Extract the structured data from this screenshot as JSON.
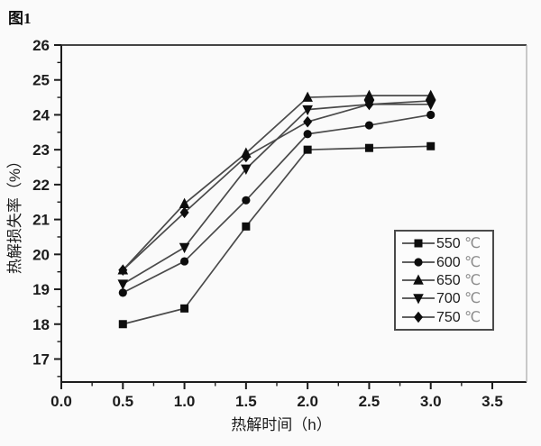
{
  "figure_label": "图1",
  "chart_data": {
    "type": "line",
    "title": "",
    "xlabel": "热解时间（h）",
    "ylabel": "热解损失率（%）",
    "xlim": [
      0.0,
      3.5
    ],
    "ylim": [
      16.3,
      26
    ],
    "x_ticks": [
      "0.0",
      "0.5",
      "1.0",
      "1.5",
      "2.0",
      "2.5",
      "3.0",
      "3.5"
    ],
    "y_ticks": [
      "17",
      "18",
      "19",
      "20",
      "21",
      "22",
      "23",
      "24",
      "25",
      "26"
    ],
    "x_minor_step": 0.25,
    "y_minor_step": 0.5,
    "grid": false,
    "legend_position": "right-middle",
    "line_color": "#4a4a4a",
    "marker_color": "#0d0d0d",
    "x": [
      0.5,
      1.0,
      1.5,
      2.0,
      2.5,
      3.0
    ],
    "series": [
      {
        "name": "550 ℃",
        "temp": "550",
        "unit": "℃",
        "marker": "square",
        "values": [
          18.0,
          18.45,
          20.8,
          23.0,
          23.05,
          23.1
        ]
      },
      {
        "name": "600 ℃",
        "temp": "600",
        "unit": "℃",
        "marker": "circle",
        "values": [
          18.9,
          19.8,
          21.55,
          23.45,
          23.7,
          24.0
        ]
      },
      {
        "name": "650 ℃",
        "temp": "650",
        "unit": "℃",
        "marker": "triangle-up",
        "values": [
          19.55,
          21.45,
          22.9,
          24.5,
          24.55,
          24.55
        ]
      },
      {
        "name": "700 ℃",
        "temp": "700",
        "unit": "℃",
        "marker": "triangle-down",
        "values": [
          19.15,
          20.2,
          22.45,
          24.15,
          24.3,
          24.3
        ]
      },
      {
        "name": "750 ℃",
        "temp": "750",
        "unit": "℃",
        "marker": "diamond",
        "values": [
          19.55,
          21.2,
          22.8,
          23.8,
          24.3,
          24.4
        ]
      }
    ]
  }
}
